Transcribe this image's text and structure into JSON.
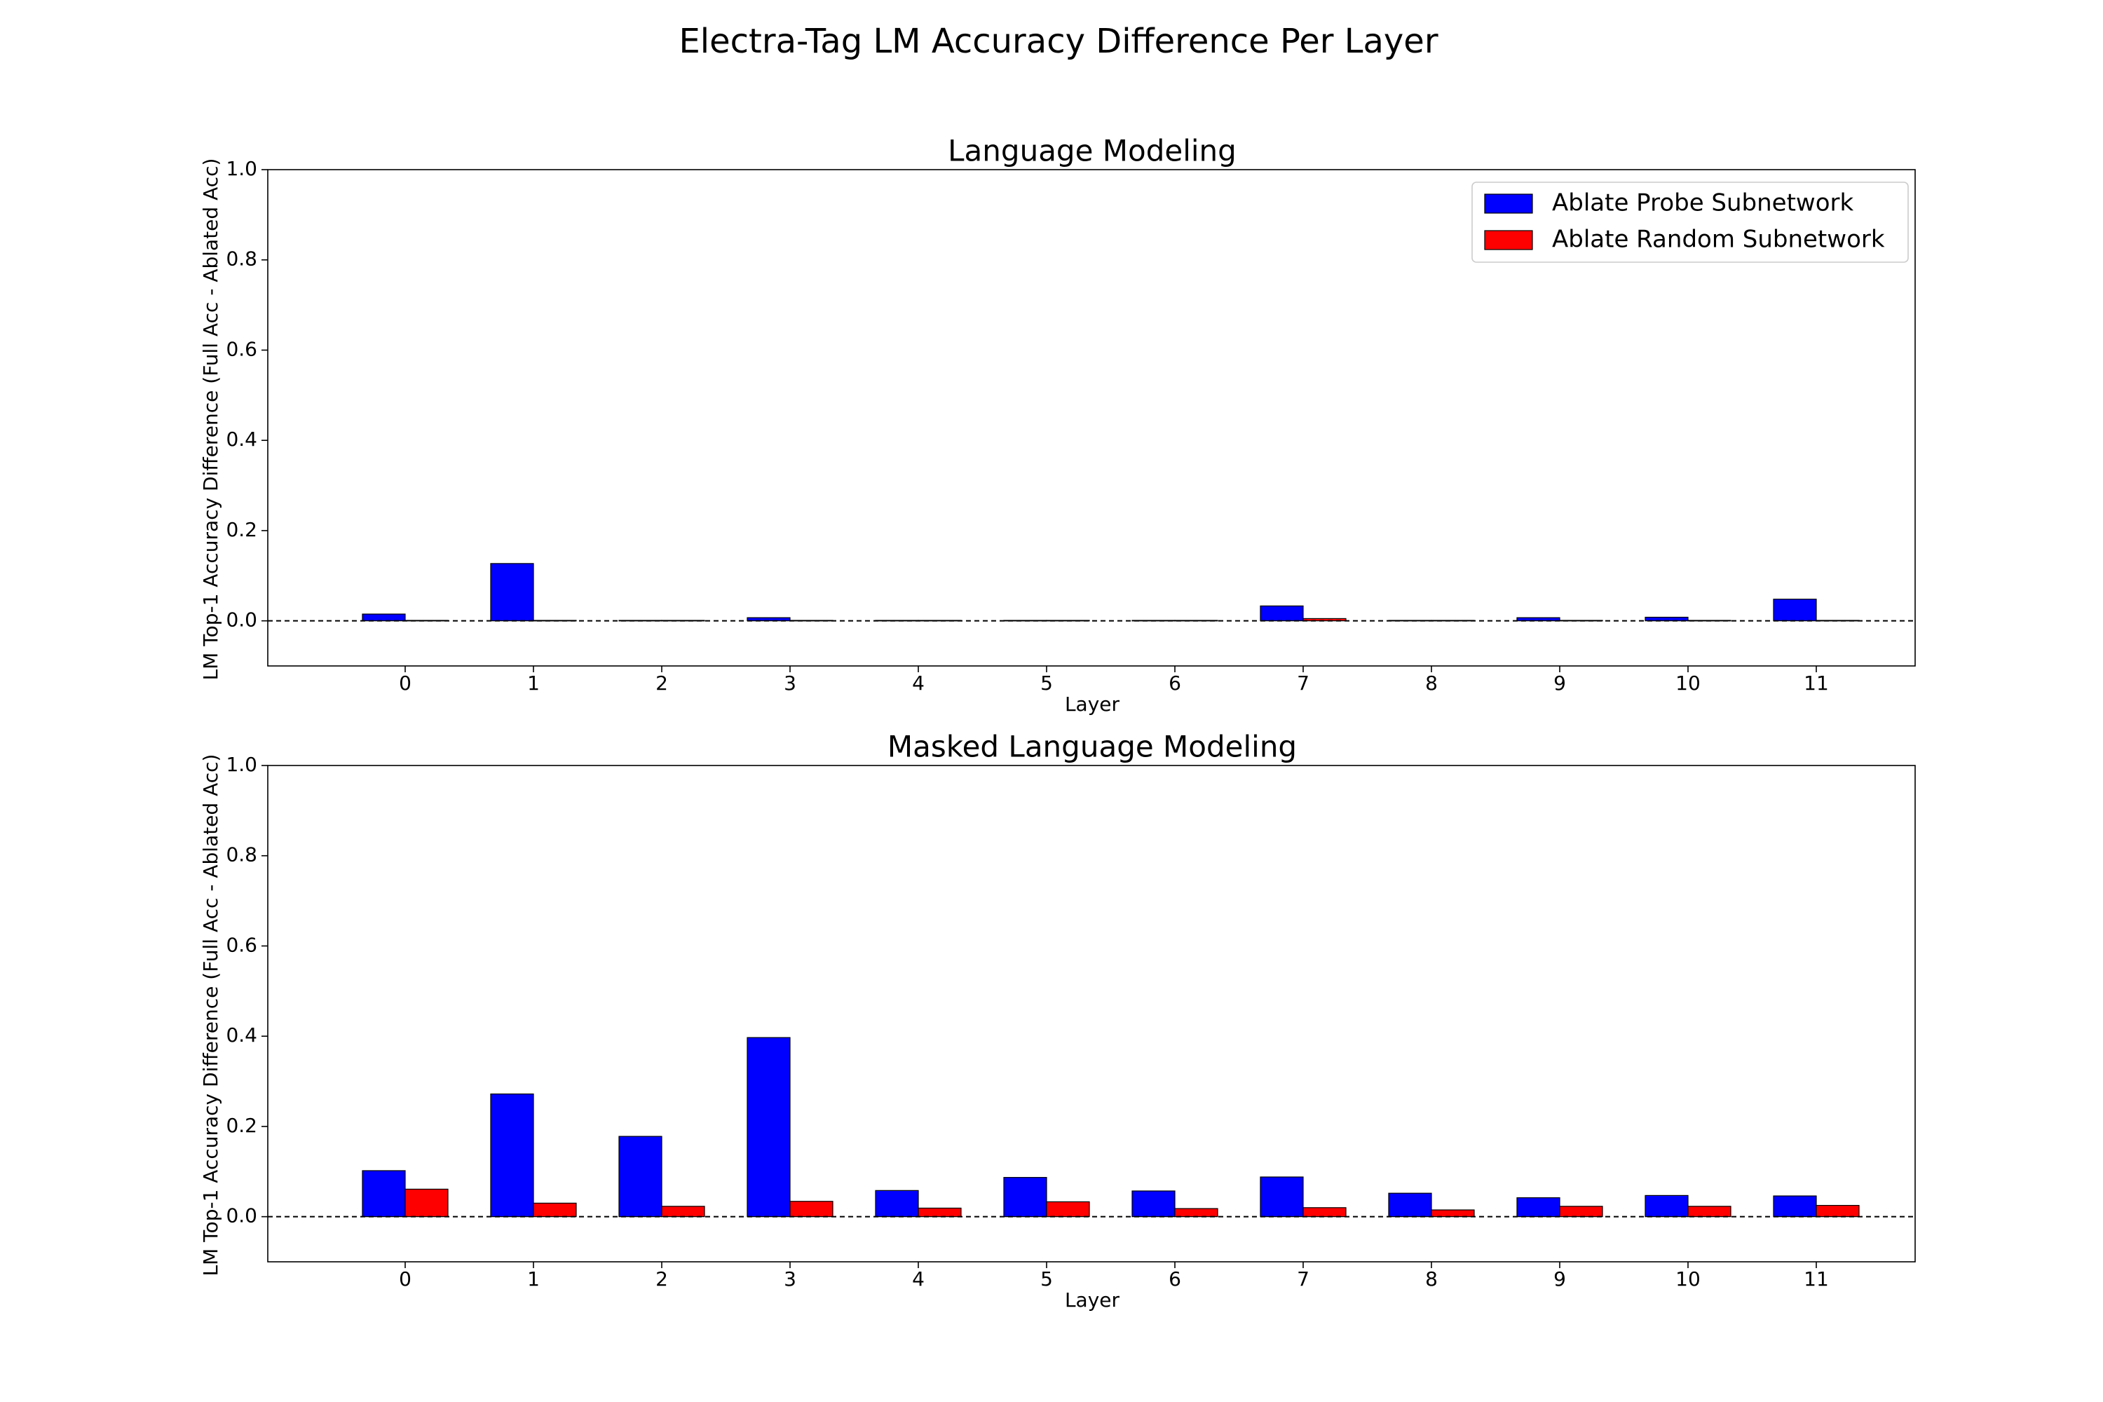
{
  "figure_title": "Electra-Tag LM Accuracy Difference Per Layer",
  "legend": [
    {
      "label": "Ablate Probe Subnetwork",
      "color": "#0000ff"
    },
    {
      "label": "Ablate Random Subnetwork",
      "color": "#ff0000"
    }
  ],
  "chart_data": [
    {
      "type": "bar",
      "title": "Language Modeling",
      "xlabel": "Layer",
      "ylabel": "LM Top-1 Accuracy Difference (Full Acc - Ablated Acc)",
      "categories": [
        "0",
        "1",
        "2",
        "3",
        "4",
        "5",
        "6",
        "7",
        "8",
        "9",
        "10",
        "11"
      ],
      "ylim": [
        -0.1,
        1.0
      ],
      "yticks": [
        "0.0",
        "0.2",
        "0.4",
        "0.6",
        "0.8",
        "1.0"
      ],
      "baseline": 0.0,
      "legend_position": "upper right",
      "grid": false,
      "series": [
        {
          "name": "Ablate Probe Subnetwork",
          "color": "#0000ff",
          "values": [
            0.015,
            0.127,
            0.001,
            0.007,
            0.001,
            0.001,
            0.001,
            0.033,
            0.001,
            0.007,
            0.008,
            0.048
          ]
        },
        {
          "name": "Ablate Random Subnetwork",
          "color": "#ff0000",
          "values": [
            0.001,
            0.001,
            0.001,
            0.001,
            0.001,
            0.001,
            0.001,
            0.005,
            0.001,
            0.001,
            0.001,
            0.001
          ]
        }
      ]
    },
    {
      "type": "bar",
      "title": "Masked Language Modeling",
      "xlabel": "Layer",
      "ylabel": "LM Top-1 Accuracy Difference (Full Acc - Ablated Acc)",
      "categories": [
        "0",
        "1",
        "2",
        "3",
        "4",
        "5",
        "6",
        "7",
        "8",
        "9",
        "10",
        "11"
      ],
      "ylim": [
        -0.1,
        1.0
      ],
      "yticks": [
        "0.0",
        "0.2",
        "0.4",
        "0.6",
        "0.8",
        "1.0"
      ],
      "baseline": 0.0,
      "grid": false,
      "series": [
        {
          "name": "Ablate Probe Subnetwork",
          "color": "#0000ff",
          "values": [
            0.102,
            0.272,
            0.178,
            0.397,
            0.058,
            0.087,
            0.057,
            0.088,
            0.052,
            0.042,
            0.047,
            0.046
          ]
        },
        {
          "name": "Ablate Random Subnetwork",
          "color": "#ff0000",
          "values": [
            0.061,
            0.03,
            0.023,
            0.034,
            0.019,
            0.033,
            0.018,
            0.02,
            0.015,
            0.023,
            0.023,
            0.025
          ]
        }
      ]
    }
  ]
}
